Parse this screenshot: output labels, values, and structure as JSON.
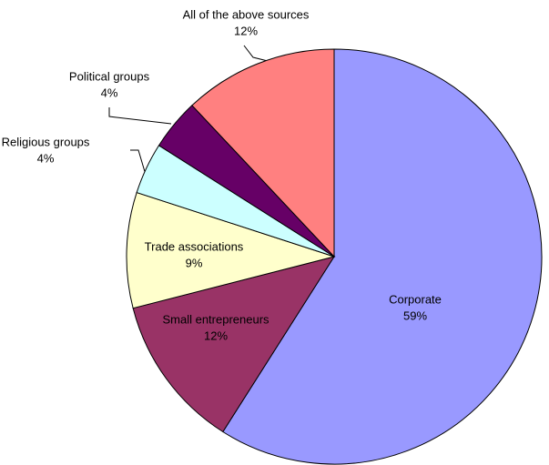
{
  "chart_data": {
    "type": "pie",
    "categories": [
      "Corporate",
      "Small entrepreneurs",
      "Trade associations",
      "Religious groups",
      "Political groups",
      "All of the above sources"
    ],
    "values": [
      59,
      12,
      9,
      4,
      4,
      12
    ],
    "value_labels": [
      "59%",
      "12%",
      "9%",
      "4%",
      "4%",
      "12%"
    ],
    "colors": [
      "#9999ff",
      "#993366",
      "#ffffcc",
      "#ccffff",
      "#660066",
      "#ff8080"
    ]
  }
}
